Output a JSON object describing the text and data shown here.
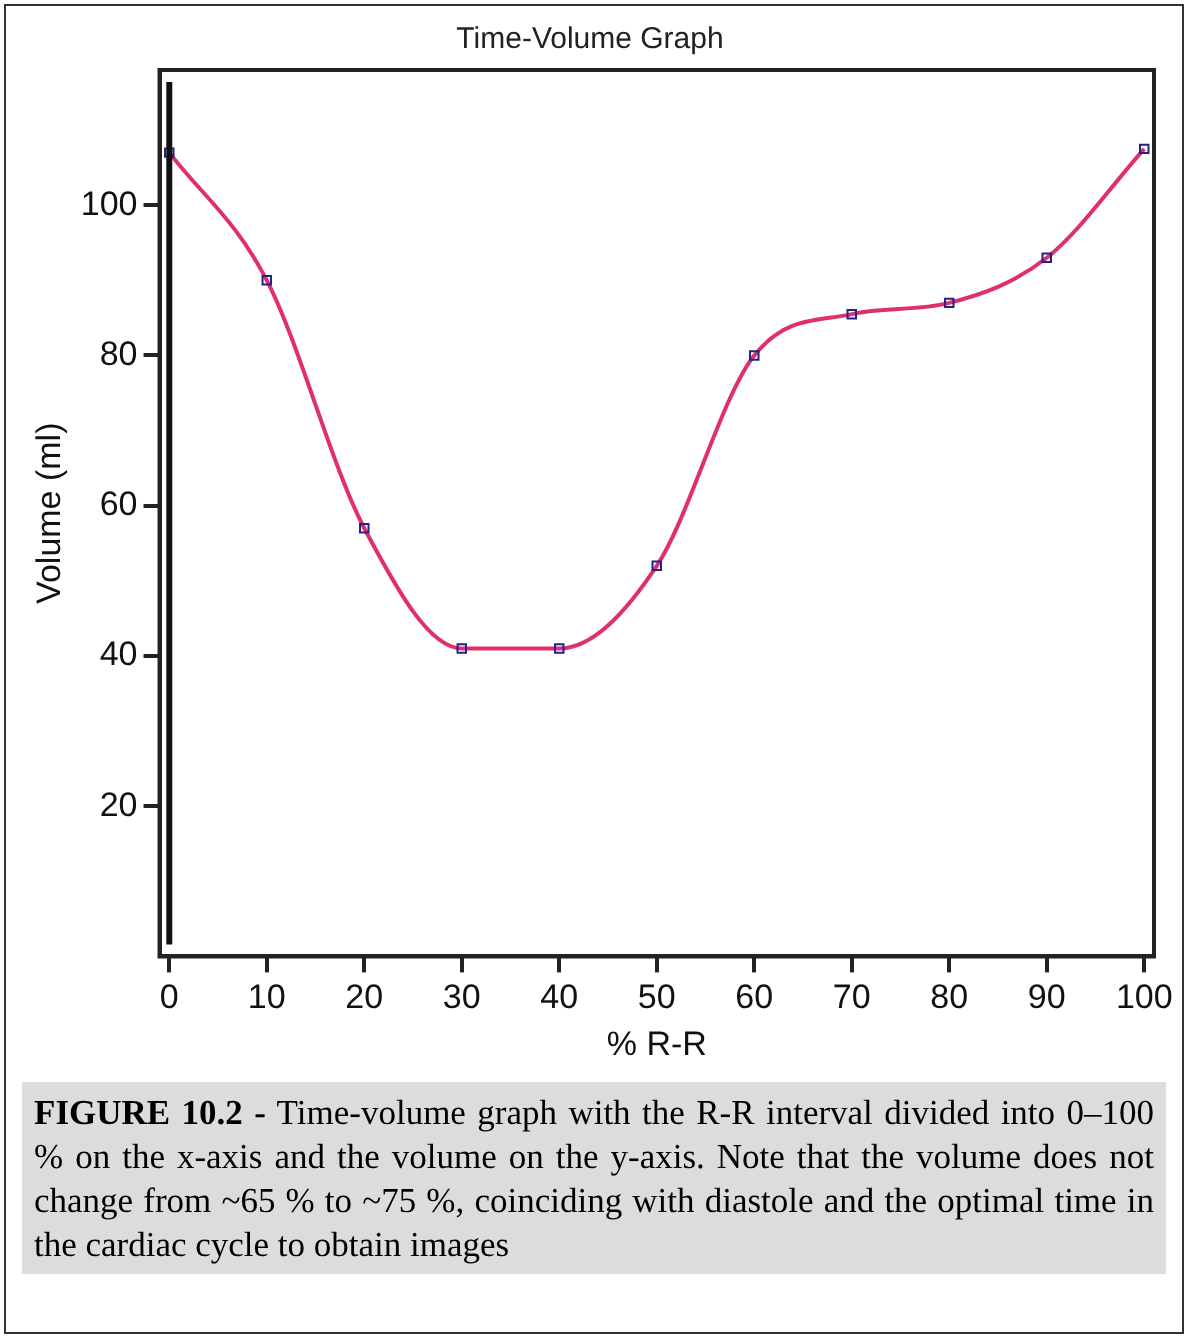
{
  "chart_data": {
    "type": "line",
    "title": "Time-Volume Graph",
    "xlabel": "% R-R",
    "ylabel": "Volume (ml)",
    "x": [
      0,
      10,
      20,
      30,
      40,
      50,
      60,
      70,
      80,
      90,
      100
    ],
    "series": [
      {
        "color": "#e0306a",
        "values": [
          107,
          90,
          57,
          41,
          41,
          52,
          80,
          85.5,
          87,
          93,
          107.5
        ]
      }
    ],
    "xlim": [
      -1,
      101
    ],
    "xticks": [
      0,
      10,
      20,
      30,
      40,
      50,
      60,
      70,
      80,
      90,
      100
    ],
    "ylim": [
      0,
      118
    ],
    "yticks": [
      20,
      40,
      60,
      80,
      100
    ],
    "ref_lines": [
      {
        "axis": "x",
        "value": 0,
        "color": "#111111"
      }
    ],
    "marker": "square",
    "grid": false,
    "legend": false,
    "annotations": [
      "FIGURE 10.2 -",
      "Time-volume graph with the R-R interval divided into 0–100 % on the x-axis and the volume on the y-axis. Note that the volume does not change from ~65 % to ~75 %, coinciding with diastole and the optimal time in the cardiac cycle to obtain images"
    ]
  }
}
